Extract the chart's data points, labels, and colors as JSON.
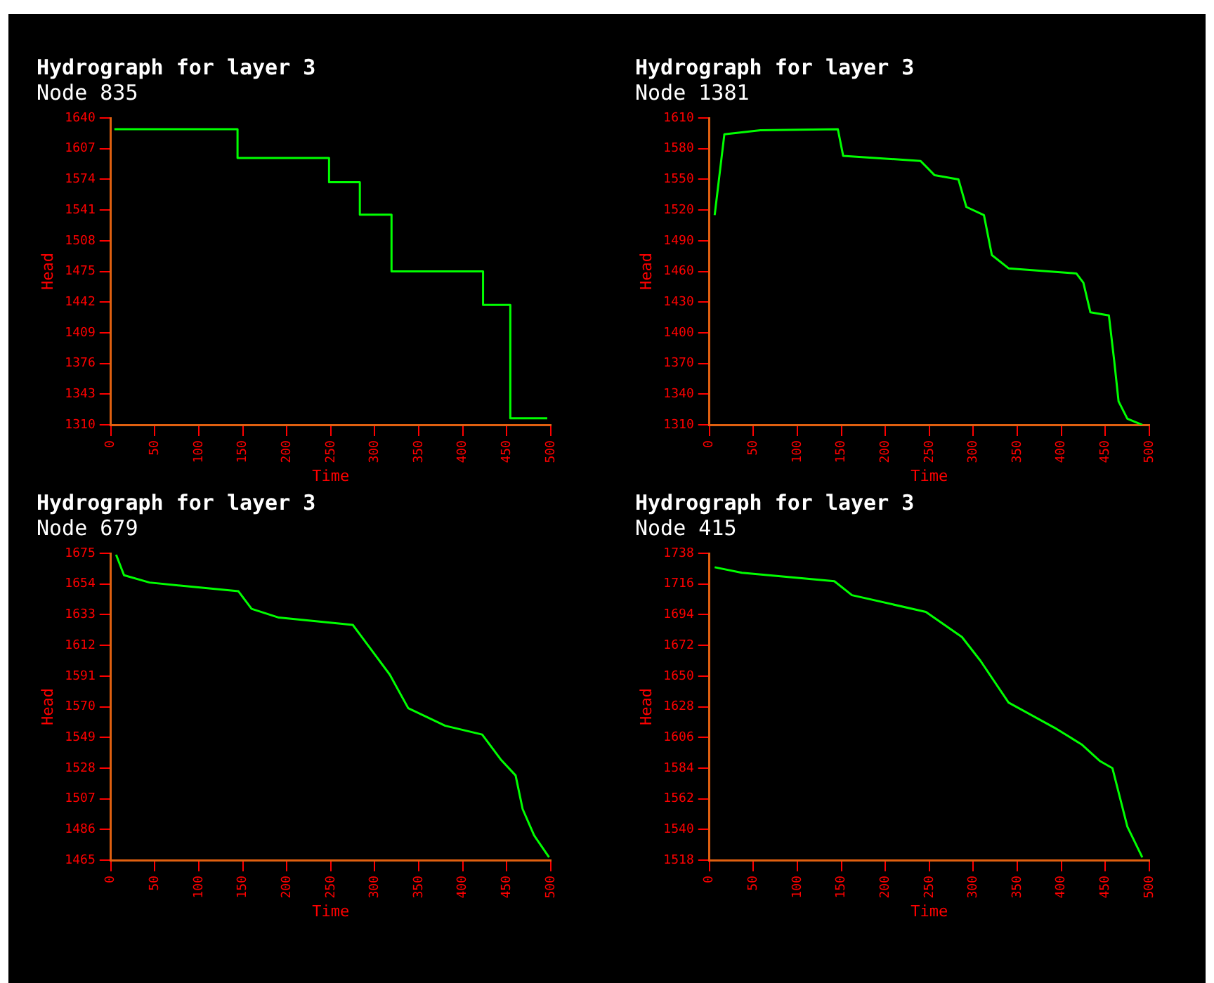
{
  "chart_data": [
    {
      "type": "step",
      "title": "Hydrograph for layer 3",
      "subtitle": "Node 835",
      "xlabel": "Time",
      "ylabel": "Head",
      "grid": false,
      "legend": false,
      "marker": "none",
      "series": [
        {
          "color": "#00ff00",
          "x": [
            4,
            144,
            248,
            283,
            319,
            423,
            454,
            496
          ],
          "values": [
            1628,
            1597,
            1571,
            1536,
            1475,
            1439,
            1317,
            1317
          ]
        }
      ],
      "xlim": [
        0,
        500
      ],
      "xticks": [
        0,
        50,
        100,
        150,
        200,
        250,
        300,
        350,
        400,
        450,
        500
      ],
      "ylim": [
        1310,
        1640
      ],
      "yticks": [
        1310,
        1343,
        1376,
        1409,
        1442,
        1475,
        1508,
        1541,
        1574,
        1607,
        1640
      ]
    },
    {
      "type": "line",
      "title": "Hydrograph for layer 3",
      "subtitle": "Node 1381",
      "xlabel": "Time",
      "ylabel": "Head",
      "grid": false,
      "legend": false,
      "marker": "none",
      "series": [
        {
          "color": "#00ff00",
          "x": [
            6,
            17,
            58,
            146,
            152,
            240,
            256,
            283,
            292,
            312,
            321,
            340,
            417,
            425,
            433,
            454,
            460,
            465,
            475,
            492
          ],
          "values": [
            1515,
            1594,
            1598,
            1599,
            1573,
            1568,
            1554,
            1550,
            1523,
            1515,
            1476,
            1463,
            1458,
            1449,
            1420,
            1417,
            1373,
            1333,
            1316,
            1310
          ]
        }
      ],
      "xlim": [
        0,
        500
      ],
      "xticks": [
        0,
        50,
        100,
        150,
        200,
        250,
        300,
        350,
        400,
        450,
        500
      ],
      "ylim": [
        1310,
        1610
      ],
      "yticks": [
        1310,
        1340,
        1370,
        1400,
        1430,
        1460,
        1490,
        1520,
        1550,
        1580,
        1610
      ]
    },
    {
      "type": "line",
      "title": "Hydrograph for layer 3",
      "subtitle": "Node 679",
      "xlabel": "Time",
      "ylabel": "Head",
      "grid": false,
      "legend": false,
      "marker": "none",
      "series": [
        {
          "color": "#00ff00",
          "x": [
            6,
            15,
            44,
            145,
            160,
            191,
            275,
            296,
            317,
            338,
            380,
            422,
            443,
            460,
            468,
            481,
            498
          ],
          "values": [
            1674,
            1660,
            1655,
            1649,
            1637,
            1631,
            1626,
            1609,
            1592,
            1569,
            1557,
            1551,
            1534,
            1523,
            1500,
            1482,
            1467
          ]
        }
      ],
      "xlim": [
        0,
        500
      ],
      "xticks": [
        0,
        50,
        100,
        150,
        200,
        250,
        300,
        350,
        400,
        450,
        500
      ],
      "ylim": [
        1465,
        1675
      ],
      "yticks": [
        1465,
        1486,
        1507,
        1528,
        1549,
        1570,
        1591,
        1612,
        1633,
        1654,
        1675
      ]
    },
    {
      "type": "line",
      "title": "Hydrograph for layer 3",
      "subtitle": "Node 415",
      "xlabel": "Time",
      "ylabel": "Head",
      "grid": false,
      "legend": false,
      "marker": "none",
      "series": [
        {
          "color": "#00ff00",
          "x": [
            6,
            37,
            142,
            162,
            246,
            287,
            308,
            340,
            392,
            423,
            444,
            458,
            475,
            492
          ],
          "values": [
            1728,
            1724,
            1718,
            1708,
            1696,
            1678,
            1661,
            1631,
            1613,
            1601,
            1589,
            1584,
            1542,
            1520
          ]
        }
      ],
      "xlim": [
        0,
        500
      ],
      "xticks": [
        0,
        50,
        100,
        150,
        200,
        250,
        300,
        350,
        400,
        450,
        500
      ],
      "ylim": [
        1518,
        1738
      ],
      "yticks": [
        1518,
        1540,
        1562,
        1584,
        1606,
        1628,
        1650,
        1672,
        1694,
        1716,
        1738
      ]
    }
  ]
}
